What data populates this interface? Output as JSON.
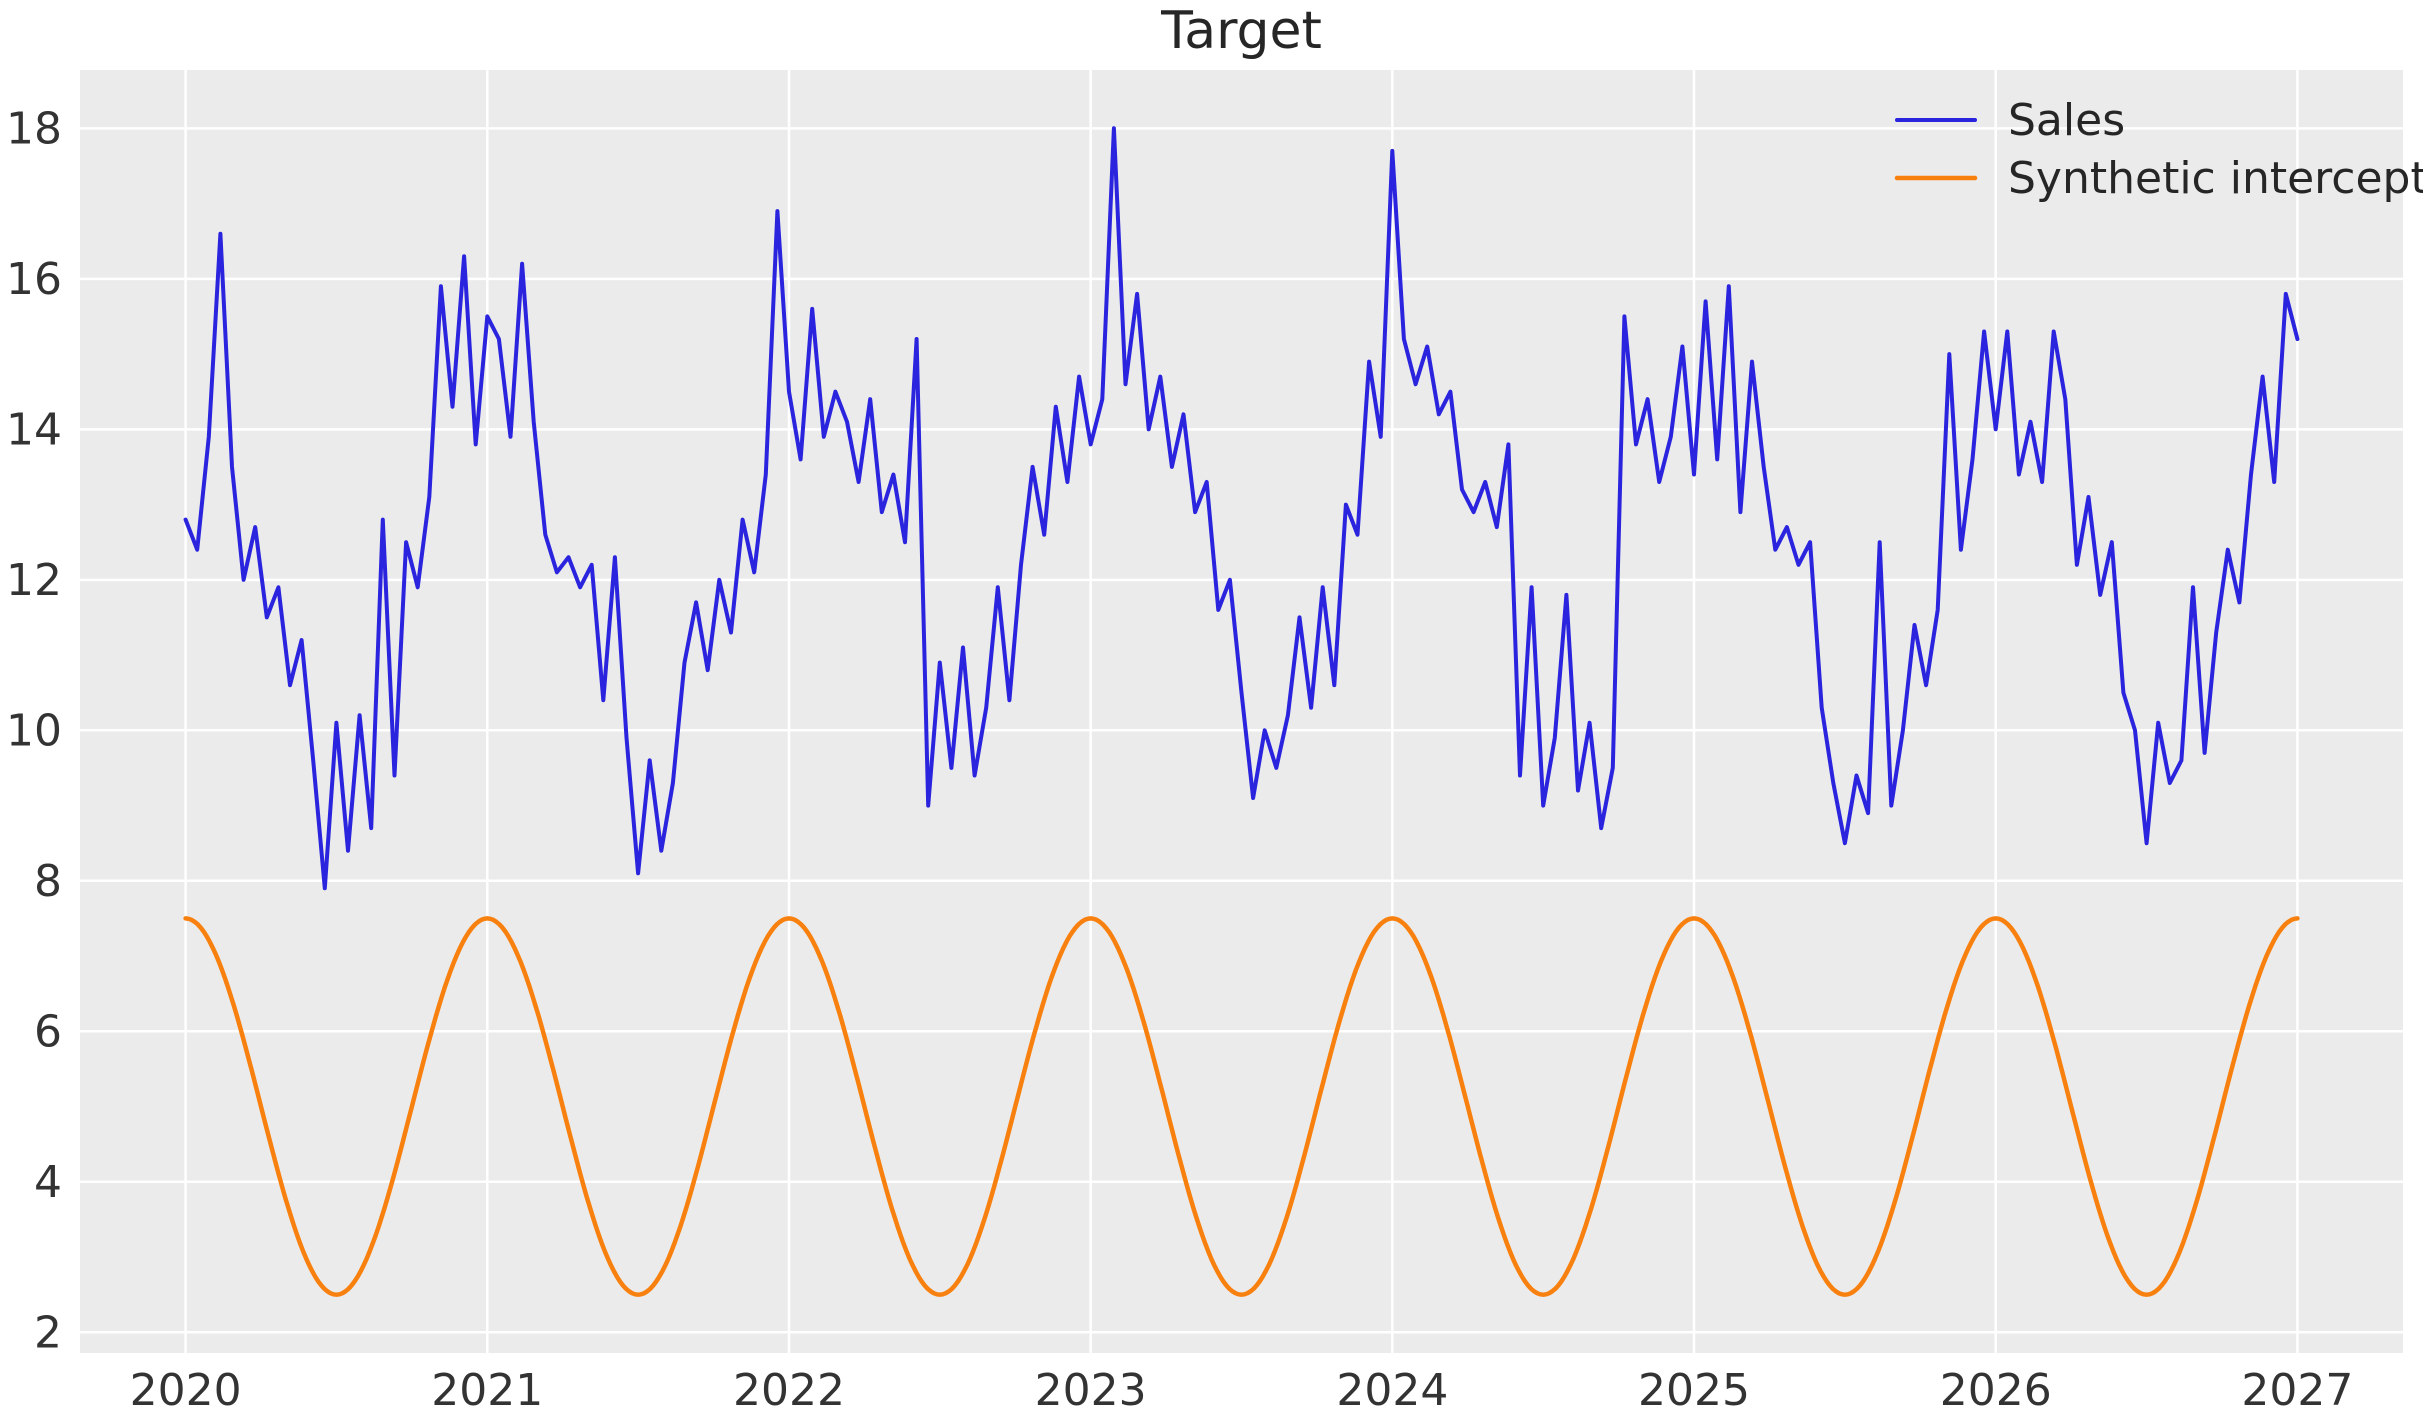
{
  "figure": {
    "title": "Target"
  },
  "chart_data": {
    "type": "line",
    "title": "Target",
    "xlabel": "",
    "ylabel": "",
    "grid": true,
    "legend_position": "upper right",
    "x_axis": {
      "ticks": [
        2020,
        2021,
        2022,
        2023,
        2024,
        2025,
        2026,
        2027
      ],
      "lim": [
        2019.65,
        2027.35
      ]
    },
    "y_axis": {
      "ticks": [
        2,
        4,
        6,
        8,
        10,
        12,
        14,
        16,
        18
      ],
      "lim": [
        1.725,
        18.775
      ]
    },
    "styles": {
      "plot_bg": "#ebebeb",
      "grid_color": "#ffffff",
      "tick_color": "#333333",
      "title_color": "#262626",
      "sales_color": "#2b24de",
      "intercept_color": "#f8800e"
    },
    "series": [
      {
        "name": "Sales",
        "color": "#2b24de",
        "sampling": "weekly-ish (estimated at ~biweekly resolution from pixels)",
        "x_start": 2020.0,
        "x_end": 2027.0,
        "x_step": 0.0384615,
        "values": [
          12.8,
          12.4,
          13.9,
          16.6,
          13.5,
          12.0,
          12.7,
          11.5,
          11.9,
          10.6,
          11.2,
          9.6,
          7.9,
          10.1,
          8.4,
          10.2,
          8.7,
          12.8,
          9.4,
          12.5,
          11.9,
          13.1,
          15.9,
          14.3,
          16.3,
          13.8,
          15.5,
          15.2,
          13.9,
          16.2,
          14.1,
          12.6,
          12.1,
          12.3,
          11.9,
          12.2,
          10.4,
          12.3,
          9.9,
          8.1,
          9.6,
          8.4,
          9.3,
          10.9,
          11.7,
          10.8,
          12.0,
          11.3,
          12.8,
          12.1,
          13.4,
          16.9,
          14.5,
          13.6,
          15.6,
          13.9,
          14.5,
          14.1,
          13.3,
          14.4,
          12.9,
          13.4,
          12.5,
          15.2,
          9.0,
          10.9,
          9.5,
          11.1,
          9.4,
          10.3,
          11.9,
          10.4,
          12.2,
          13.5,
          12.6,
          14.3,
          13.3,
          14.7,
          13.8,
          14.4,
          18.0,
          14.6,
          15.8,
          14.0,
          14.7,
          13.5,
          14.2,
          12.9,
          13.3,
          11.6,
          12.0,
          10.5,
          9.1,
          10.0,
          9.5,
          10.2,
          11.5,
          10.3,
          11.9,
          10.6,
          13.0,
          12.6,
          14.9,
          13.9,
          17.7,
          15.2,
          14.6,
          15.1,
          14.2,
          14.5,
          13.2,
          12.9,
          13.3,
          12.7,
          13.8,
          9.4,
          11.9,
          9.0,
          9.9,
          11.8,
          9.2,
          10.1,
          8.7,
          9.5,
          15.5,
          13.8,
          14.4,
          13.3,
          13.9,
          15.1,
          13.4,
          15.7,
          13.6,
          15.9,
          12.9,
          14.9,
          13.5,
          12.4,
          12.7,
          12.2,
          12.5,
          10.3,
          9.3,
          8.5,
          9.4,
          8.9,
          12.5,
          9.0,
          10.0,
          11.4,
          10.6,
          11.6,
          15.0,
          12.4,
          13.6,
          15.3,
          14.0,
          15.3,
          13.4,
          14.1,
          13.3,
          15.3,
          14.4,
          12.2,
          13.1,
          11.8,
          12.5,
          10.5,
          10.0,
          8.5,
          10.1,
          9.3,
          9.6,
          11.9,
          9.7,
          11.3,
          12.4,
          11.7,
          13.4,
          14.7,
          13.3,
          15.8,
          15.2
        ]
      },
      {
        "name": "Synthetic intercept",
        "color": "#f8800e",
        "model": "sinusoid",
        "mean": 5.0,
        "amplitude": 2.5,
        "min": 2.5,
        "max": 7.5,
        "period_years": 1.0,
        "peak_at": 2020.0,
        "x_start": 2020.0,
        "x_end": 2027.0
      }
    ],
    "legend": {
      "entries": [
        {
          "label": "Sales",
          "color": "#2b24de"
        },
        {
          "label": "Synthetic intercept",
          "color": "#f8800e"
        }
      ]
    }
  }
}
